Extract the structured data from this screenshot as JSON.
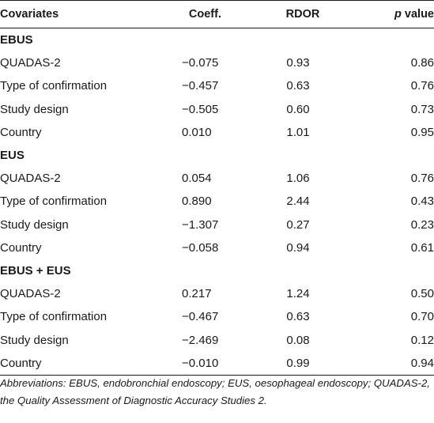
{
  "table": {
    "headers": {
      "covariates": "Covariates",
      "coeff": "Coeff.",
      "rdor": "RDOR",
      "p_italic": "p",
      "p_rest": " value"
    },
    "groups": [
      {
        "name": "EBUS",
        "rows": [
          {
            "covariate": "QUADAS-2",
            "coeff": "−0.075",
            "rdor": "0.93",
            "p": "0.86"
          },
          {
            "covariate": "Type of confirmation",
            "coeff": "−0.457",
            "rdor": "0.63",
            "p": "0.76"
          },
          {
            "covariate": "Study design",
            "coeff": "−0.505",
            "rdor": "0.60",
            "p": "0.73"
          },
          {
            "covariate": "Country",
            "coeff": "0.010",
            "rdor": "1.01",
            "p": "0.95"
          }
        ]
      },
      {
        "name": "EUS",
        "rows": [
          {
            "covariate": "QUADAS-2",
            "coeff": "0.054",
            "rdor": "1.06",
            "p": "0.76"
          },
          {
            "covariate": "Type of confirmation",
            "coeff": "0.890",
            "rdor": "2.44",
            "p": "0.43"
          },
          {
            "covariate": "Study design",
            "coeff": "−1.307",
            "rdor": "0.27",
            "p": "0.23"
          },
          {
            "covariate": "Country",
            "coeff": "−0.058",
            "rdor": "0.94",
            "p": "0.61"
          }
        ]
      },
      {
        "name": "EBUS + EUS",
        "rows": [
          {
            "covariate": "QUADAS-2",
            "coeff": "0.217",
            "rdor": "1.24",
            "p": "0.50"
          },
          {
            "covariate": "Type of confirmation",
            "coeff": "−0.467",
            "rdor": "0.63",
            "p": "0.70"
          },
          {
            "covariate": "Study design",
            "coeff": "−2.469",
            "rdor": "0.08",
            "p": "0.12"
          },
          {
            "covariate": "Country",
            "coeff": "−0.010",
            "rdor": "0.99",
            "p": "0.94"
          }
        ]
      }
    ]
  },
  "footnote": "Abbreviations: EBUS, endobronchial endoscopy; EUS, oesophageal endoscopy; QUADAS-2, the Quality Assessment of Diagnostic Accuracy Studies 2."
}
